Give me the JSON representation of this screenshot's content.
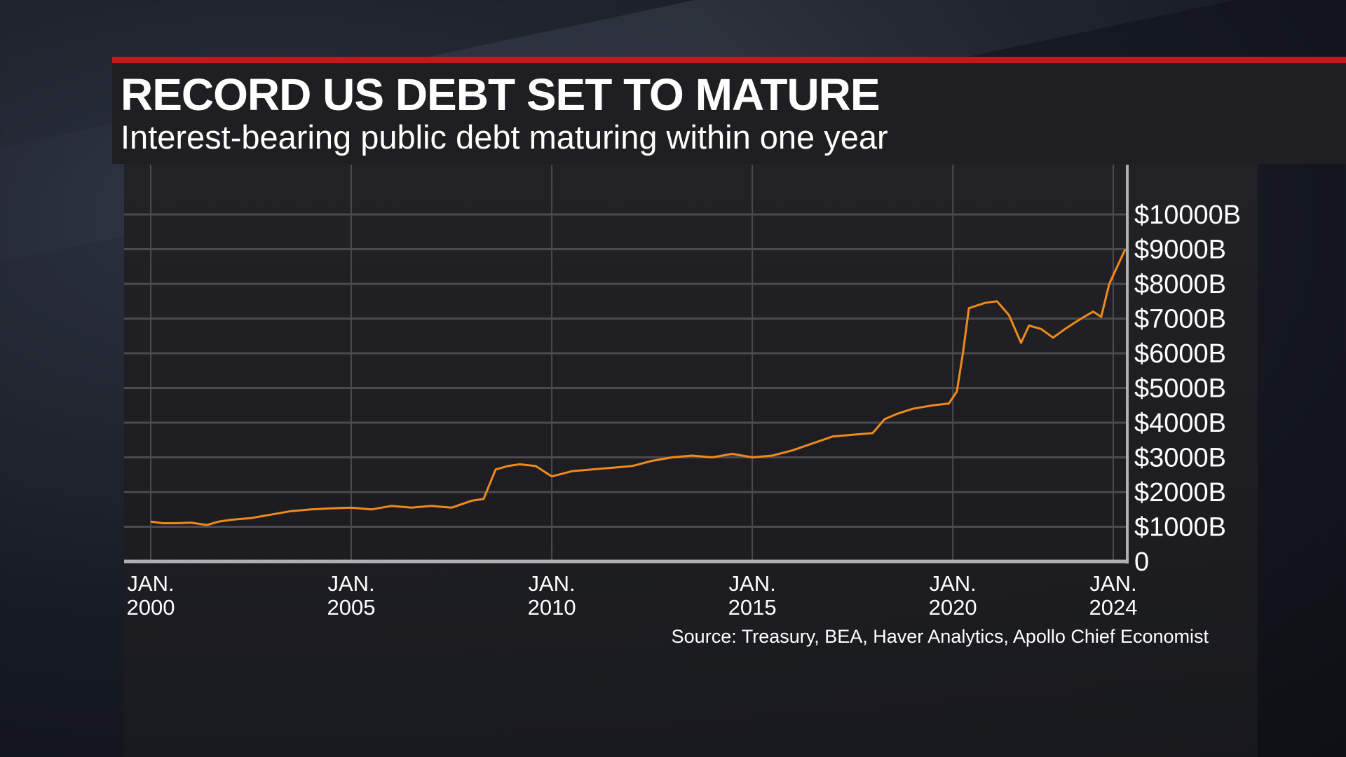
{
  "header": {
    "title": "RECORD US DEBT SET TO MATURE",
    "subtitle": "Interest-bearing public debt maturing within one year"
  },
  "colors": {
    "accent": "#c8161d",
    "line": "#f08a1c"
  },
  "chart_data": {
    "type": "line",
    "title": "RECORD US DEBT SET TO MATURE",
    "subtitle": "Interest-bearing public debt maturing within one year",
    "xlabel": "",
    "ylabel": "",
    "xlim": [
      2000,
      2024.4
    ],
    "ylim": [
      0,
      10000
    ],
    "y_ticks": [
      0,
      1000,
      2000,
      3000,
      4000,
      5000,
      6000,
      7000,
      8000,
      9000,
      10000
    ],
    "y_tick_labels": [
      "0",
      "$1000B",
      "$2000B",
      "$3000B",
      "$4000B",
      "$5000B",
      "$6000B",
      "$7000B",
      "$8000B",
      "$9000B",
      "$10000B"
    ],
    "x_ticks": [
      2000,
      2005,
      2010,
      2015,
      2020,
      2024
    ],
    "x_tick_labels": [
      [
        "JAN.",
        "2000"
      ],
      [
        "JAN.",
        "2005"
      ],
      [
        "JAN.",
        "2010"
      ],
      [
        "JAN.",
        "2015"
      ],
      [
        "JAN.",
        "2020"
      ],
      [
        "JAN.",
        "2024"
      ]
    ],
    "grid": true,
    "series": [
      {
        "name": "Public debt maturing within one year ($B)",
        "x": [
          2000,
          2000.3,
          2000.6,
          2001,
          2001.4,
          2001.7,
          2002,
          2002.5,
          2003,
          2003.5,
          2004,
          2004.5,
          2005,
          2005.5,
          2006,
          2006.5,
          2007,
          2007.5,
          2008,
          2008.3,
          2008.6,
          2008.9,
          2009.2,
          2009.6,
          2010,
          2010.5,
          2011,
          2011.5,
          2012,
          2012.5,
          2013,
          2013.5,
          2014,
          2014.5,
          2015,
          2015.5,
          2016,
          2016.5,
          2017,
          2017.5,
          2018,
          2018.3,
          2018.6,
          2019,
          2019.5,
          2019.9,
          2020.1,
          2020.25,
          2020.4,
          2020.8,
          2021.1,
          2021.4,
          2021.7,
          2021.9,
          2022.2,
          2022.5,
          2022.8,
          2023.2,
          2023.5,
          2023.7,
          2023.9,
          2024.1,
          2024.3
        ],
        "y": [
          1150,
          1100,
          1100,
          1120,
          1050,
          1150,
          1200,
          1250,
          1350,
          1450,
          1500,
          1530,
          1550,
          1500,
          1600,
          1550,
          1600,
          1550,
          1750,
          1800,
          2650,
          2750,
          2800,
          2750,
          2450,
          2600,
          2650,
          2700,
          2750,
          2900,
          3000,
          3050,
          3000,
          3100,
          3000,
          3050,
          3200,
          3400,
          3600,
          3650,
          3700,
          4100,
          4250,
          4400,
          4500,
          4550,
          4900,
          6000,
          7300,
          7450,
          7500,
          7100,
          6300,
          6800,
          6700,
          6450,
          6700,
          7000,
          7200,
          7050,
          8000,
          8500,
          9000
        ]
      }
    ],
    "source": "Source: Treasury, BEA, Haver Analytics, Apollo Chief Economist"
  }
}
